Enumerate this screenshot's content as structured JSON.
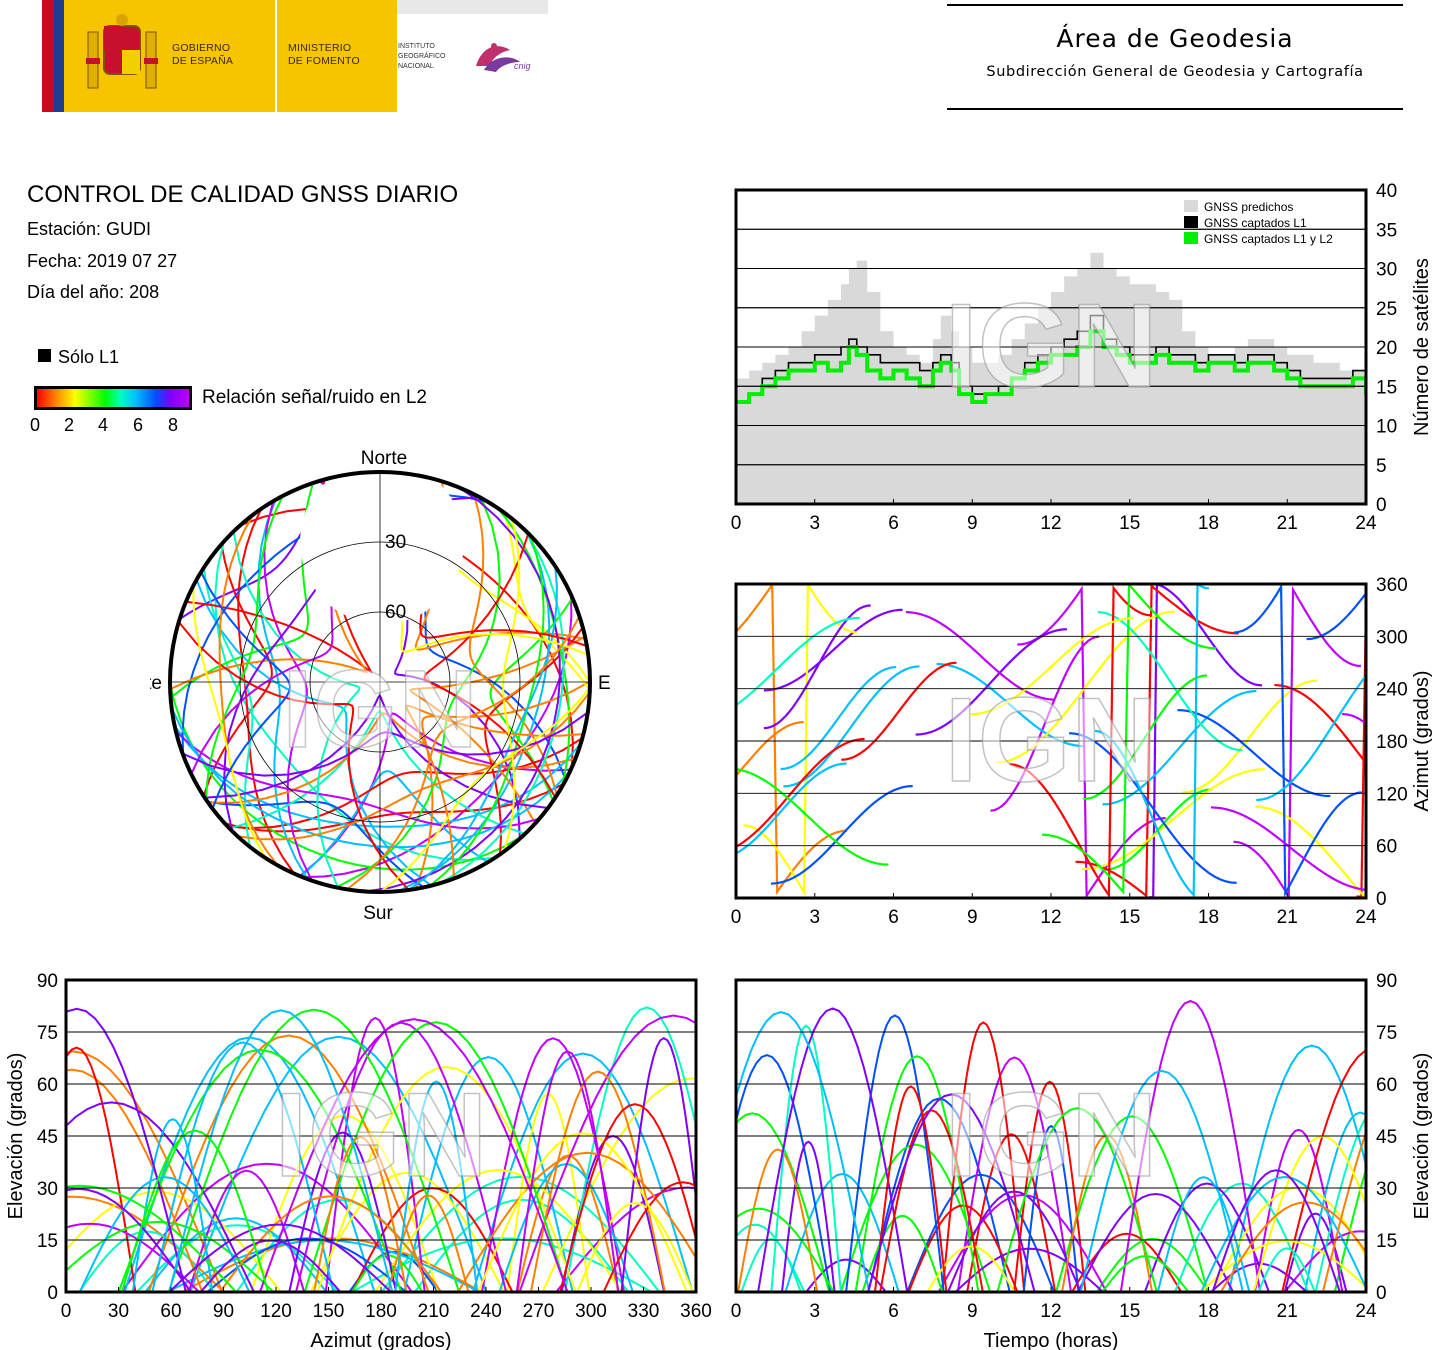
{
  "header": {
    "gov_line1": "GOBIERNO",
    "gov_line2": "DE ESPAÑA",
    "min_line1": "MINISTERIO",
    "min_line2": "DE FOMENTO",
    "ign_line1": "INSTITUTO",
    "ign_line2": "GEOGRÁFICO",
    "ign_line3": "NACIONAL",
    "cnig": "cnig",
    "area_title": "Área de Geodesia",
    "area_subtitle": "Subdirección General de Geodesia y Cartografía"
  },
  "info": {
    "title": "CONTROL DE CALIDAD GNSS DIARIO",
    "station": "Estación: GUDI",
    "date": "Fecha: 2019 07 27",
    "doy": "Día del año: 208",
    "legend_l1": "Sólo L1",
    "colorbar_label": "Relación señal/ruido en L2",
    "colorbar_ticks": [
      "0",
      "2",
      "4",
      "6",
      "8"
    ]
  },
  "watermark": "IGN",
  "colors": {
    "predicted": "#d9d9d9",
    "l1": "#000000",
    "l1l2": "#00ee00",
    "snr_scale": [
      "#ff0000",
      "#ff7f00",
      "#ffff00",
      "#00ff00",
      "#00ffbf",
      "#00bfff",
      "#0050ff",
      "#7f00ff",
      "#bf00ff"
    ]
  },
  "chart_data": [
    {
      "id": "satellites",
      "type": "area",
      "xlabel": "",
      "ylabel": "Número de satélites",
      "xlim": [
        0,
        24
      ],
      "ylim": [
        0,
        40
      ],
      "xticks": [
        "0",
        "3",
        "6",
        "9",
        "12",
        "15",
        "18",
        "21",
        "24"
      ],
      "yticks": [
        "0",
        "5",
        "10",
        "15",
        "20",
        "25",
        "30",
        "35",
        "40"
      ],
      "grid": true,
      "legend_position": "top-right",
      "series": [
        {
          "name": "GNSS predichos",
          "color": "#d9d9d9",
          "x": [
            0,
            0.5,
            1,
            1.5,
            2,
            2.5,
            3,
            3.5,
            4,
            4.3,
            4.6,
            5,
            5.5,
            6,
            6.5,
            7,
            7.5,
            7.8,
            8.2,
            8.5,
            9,
            9.5,
            10,
            10.5,
            11,
            11.5,
            12,
            12.5,
            13,
            13.5,
            14,
            14.5,
            15,
            15.5,
            16,
            16.5,
            17,
            17.5,
            18,
            18.5,
            19,
            19.5,
            20,
            20.5,
            21,
            21.5,
            22,
            22.5,
            23,
            23.5,
            24
          ],
          "y": [
            16,
            17,
            18,
            19,
            20,
            22,
            24,
            26,
            28,
            30,
            31,
            27,
            22,
            20,
            19,
            18,
            21,
            24,
            22,
            20,
            18,
            18,
            19,
            21,
            23,
            25,
            27,
            29,
            30,
            32,
            30,
            29,
            28,
            28,
            27,
            26,
            22,
            20,
            19,
            19,
            20,
            21,
            21,
            20,
            19,
            19,
            18,
            18,
            17,
            17,
            16
          ]
        },
        {
          "name": "GNSS captados L1",
          "color": "#000000",
          "x": [
            0,
            0.5,
            1,
            1.5,
            2,
            2.5,
            3,
            3.5,
            4,
            4.3,
            4.6,
            5,
            5.5,
            6,
            6.5,
            7,
            7.5,
            7.8,
            8.2,
            8.5,
            9,
            9.5,
            10,
            10.5,
            11,
            11.5,
            12,
            12.5,
            13,
            13.5,
            14,
            14.5,
            15,
            15.5,
            16,
            16.5,
            17,
            17.5,
            18,
            18.5,
            19,
            19.5,
            20,
            20.5,
            21,
            21.5,
            22,
            22.5,
            23,
            23.5,
            24
          ],
          "y": [
            13,
            14,
            16,
            17,
            18,
            18,
            19,
            19,
            20,
            21,
            20,
            19,
            18,
            18,
            18,
            17,
            18,
            19,
            18,
            15,
            14,
            14,
            15,
            16,
            18,
            19,
            20,
            21,
            22,
            24,
            21,
            20,
            19,
            19,
            20,
            19,
            19,
            18,
            19,
            19,
            18,
            19,
            19,
            18,
            17,
            16,
            16,
            16,
            16,
            17,
            15
          ]
        },
        {
          "name": "GNSS captados L1 y L2",
          "color": "#00ee00",
          "x": [
            0,
            0.5,
            1,
            1.5,
            2,
            2.5,
            3,
            3.5,
            4,
            4.3,
            4.6,
            5,
            5.5,
            6,
            6.5,
            7,
            7.5,
            7.8,
            8.2,
            8.5,
            9,
            9.5,
            10,
            10.5,
            11,
            11.5,
            12,
            12.5,
            13,
            13.5,
            14,
            14.5,
            15,
            15.5,
            16,
            16.5,
            17,
            17.5,
            18,
            18.5,
            19,
            19.5,
            20,
            20.5,
            21,
            21.5,
            22,
            22.5,
            23,
            23.5,
            24
          ],
          "y": [
            13,
            14,
            15,
            16,
            17,
            17,
            18,
            17,
            18,
            20,
            19,
            17,
            16,
            17,
            16,
            15,
            17,
            18,
            17,
            14,
            13,
            14,
            14,
            16,
            17,
            18,
            19,
            19,
            20,
            22,
            20,
            19,
            18,
            18,
            19,
            18,
            18,
            17,
            18,
            18,
            17,
            18,
            18,
            17,
            16,
            15,
            15,
            15,
            15,
            16,
            14
          ]
        }
      ]
    },
    {
      "id": "azimuth-time",
      "type": "scatter",
      "xlabel": "",
      "ylabel": "Azimut (grados)",
      "xlim": [
        0,
        24
      ],
      "ylim": [
        0,
        360
      ],
      "xticks": [
        "0",
        "3",
        "6",
        "9",
        "12",
        "15",
        "18",
        "21",
        "24"
      ],
      "yticks": [
        "0",
        "60",
        "120",
        "180",
        "240",
        "300",
        "360"
      ],
      "grid": true
    },
    {
      "id": "elevation-azimuth",
      "type": "scatter",
      "xlabel": "Azimut (grados)",
      "ylabel": "Elevación (grados)",
      "xlim": [
        0,
        360
      ],
      "ylim": [
        0,
        90
      ],
      "xticks": [
        "0",
        "30",
        "60",
        "90",
        "120",
        "150",
        "180",
        "210",
        "240",
        "270",
        "300",
        "330",
        "360"
      ],
      "yticks": [
        "0",
        "15",
        "30",
        "45",
        "60",
        "75",
        "90"
      ],
      "grid": true
    },
    {
      "id": "elevation-time",
      "type": "scatter",
      "xlabel": "Tiempo (horas)",
      "ylabel": "Elevación (grados)",
      "xlim": [
        0,
        24
      ],
      "ylim": [
        0,
        90
      ],
      "xticks": [
        "0",
        "3",
        "6",
        "9",
        "12",
        "15",
        "18",
        "21",
        "24"
      ],
      "yticks": [
        "0",
        "15",
        "30",
        "45",
        "60",
        "75",
        "90"
      ],
      "grid": true
    },
    {
      "id": "skyplot",
      "type": "scatter",
      "directions": {
        "north": "Norte",
        "south": "Sur",
        "west": "Oeste",
        "east": "Este"
      },
      "rings": [
        "30",
        "60"
      ],
      "grid": true
    }
  ]
}
